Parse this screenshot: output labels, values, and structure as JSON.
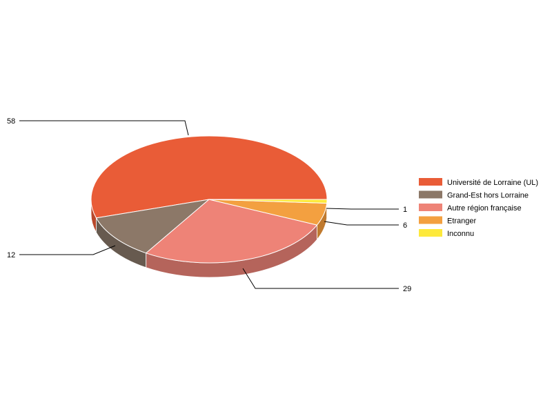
{
  "chart_data": {
    "type": "pie",
    "style": "3d",
    "categories": [
      "Université de Lorraine (UL)",
      "Grand-Est hors Lorraine",
      "Autre région française",
      "Etranger",
      "Inconnu"
    ],
    "values": [
      58,
      12,
      29,
      6,
      1
    ],
    "data_labels": [
      "58",
      "12",
      "29",
      "6",
      "1"
    ],
    "colors": [
      "#e95c37",
      "#8c7868",
      "#ee8377",
      "#f3a040",
      "#fde93c"
    ],
    "side_colors": [
      "#b8482b",
      "#675a4f",
      "#b5645b",
      "#c07a2f",
      "#c9b92f"
    ],
    "legend_position": "right"
  }
}
